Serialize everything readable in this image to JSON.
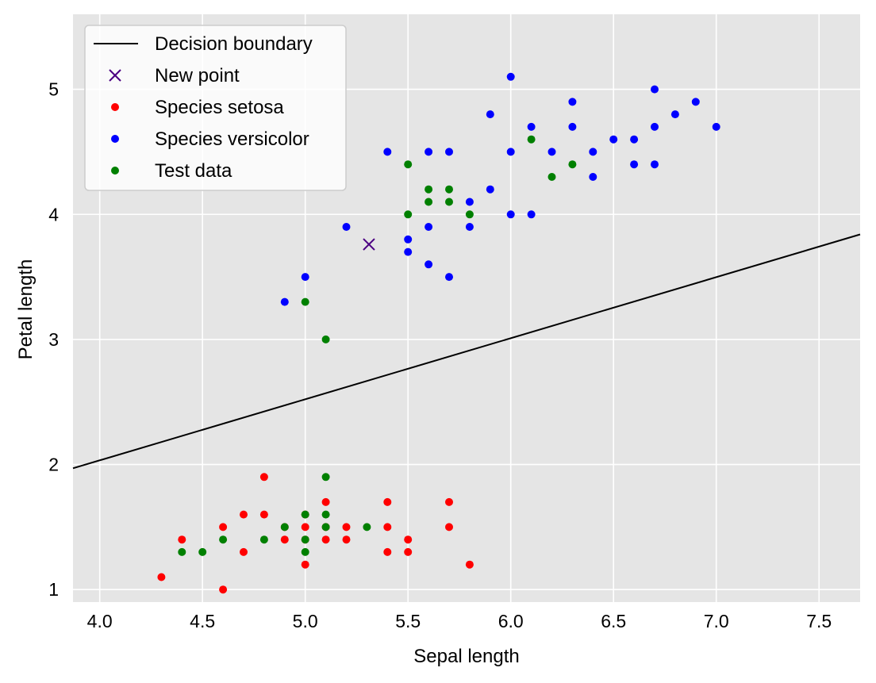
{
  "chart_data": {
    "type": "scatter",
    "title": "",
    "xlabel": "Sepal length",
    "ylabel": "Petal length",
    "xlim": [
      3.87,
      7.7
    ],
    "ylim": [
      0.9,
      5.6
    ],
    "xticks": [
      "4.0",
      "4.5",
      "5.0",
      "5.5",
      "6.0",
      "6.5",
      "7.0",
      "7.5"
    ],
    "yticks": [
      "1",
      "2",
      "3",
      "4",
      "5"
    ],
    "grid": true,
    "background": "#e5e5e5",
    "legend_position": "top-left",
    "series": [
      {
        "name": "Decision boundary",
        "kind": "line",
        "color": "#000000",
        "points": [
          [
            3.87,
            1.97
          ],
          [
            7.7,
            3.84
          ]
        ]
      },
      {
        "name": "New point",
        "kind": "x-marker",
        "color": "#4b0082",
        "points": [
          [
            5.31,
            3.76
          ]
        ]
      },
      {
        "name": "Species setosa",
        "kind": "dot",
        "color": "#ff0000",
        "points": [
          [
            4.3,
            1.1
          ],
          [
            4.4,
            1.4
          ],
          [
            4.6,
            1.5
          ],
          [
            4.6,
            1.0
          ],
          [
            4.7,
            1.6
          ],
          [
            4.7,
            1.3
          ],
          [
            4.8,
            1.9
          ],
          [
            4.8,
            1.6
          ],
          [
            4.9,
            1.5
          ],
          [
            4.9,
            1.4
          ],
          [
            5.0,
            1.6
          ],
          [
            5.0,
            1.5
          ],
          [
            5.0,
            1.4
          ],
          [
            5.0,
            1.2
          ],
          [
            5.1,
            1.7
          ],
          [
            5.1,
            1.5
          ],
          [
            5.1,
            1.4
          ],
          [
            5.2,
            1.5
          ],
          [
            5.2,
            1.4
          ],
          [
            5.4,
            1.7
          ],
          [
            5.4,
            1.5
          ],
          [
            5.4,
            1.3
          ],
          [
            5.5,
            1.4
          ],
          [
            5.5,
            1.3
          ],
          [
            5.7,
            1.7
          ],
          [
            5.7,
            1.5
          ],
          [
            5.8,
            1.2
          ]
        ]
      },
      {
        "name": "Species versicolor",
        "kind": "dot",
        "color": "#0000ff",
        "points": [
          [
            4.9,
            3.3
          ],
          [
            5.0,
            3.5
          ],
          [
            5.2,
            3.9
          ],
          [
            5.4,
            4.5
          ],
          [
            5.5,
            3.8
          ],
          [
            5.5,
            3.7
          ],
          [
            5.6,
            4.5
          ],
          [
            5.6,
            3.9
          ],
          [
            5.6,
            3.6
          ],
          [
            5.7,
            4.5
          ],
          [
            5.7,
            3.5
          ],
          [
            5.8,
            4.1
          ],
          [
            5.8,
            3.9
          ],
          [
            5.9,
            4.8
          ],
          [
            5.9,
            4.2
          ],
          [
            6.0,
            5.1
          ],
          [
            6.0,
            4.5
          ],
          [
            6.0,
            4.0
          ],
          [
            6.1,
            4.7
          ],
          [
            6.1,
            4.0
          ],
          [
            6.2,
            4.5
          ],
          [
            6.3,
            4.9
          ],
          [
            6.3,
            4.7
          ],
          [
            6.4,
            4.5
          ],
          [
            6.4,
            4.3
          ],
          [
            6.5,
            4.6
          ],
          [
            6.6,
            4.6
          ],
          [
            6.6,
            4.4
          ],
          [
            6.7,
            5.0
          ],
          [
            6.7,
            4.7
          ],
          [
            6.7,
            4.4
          ],
          [
            6.8,
            4.8
          ],
          [
            6.9,
            4.9
          ],
          [
            7.0,
            4.7
          ]
        ]
      },
      {
        "name": "Test data",
        "kind": "dot",
        "color": "#008000",
        "points": [
          [
            4.4,
            1.3
          ],
          [
            4.5,
            1.3
          ],
          [
            4.6,
            1.4
          ],
          [
            4.8,
            1.4
          ],
          [
            4.9,
            1.5
          ],
          [
            5.0,
            1.6
          ],
          [
            5.0,
            1.4
          ],
          [
            5.0,
            1.3
          ],
          [
            5.1,
            1.9
          ],
          [
            5.1,
            1.6
          ],
          [
            5.1,
            1.5
          ],
          [
            5.3,
            1.5
          ],
          [
            5.0,
            3.3
          ],
          [
            5.1,
            3.0
          ],
          [
            5.5,
            4.4
          ],
          [
            5.5,
            4.0
          ],
          [
            5.6,
            4.2
          ],
          [
            5.6,
            4.1
          ],
          [
            5.7,
            4.2
          ],
          [
            5.7,
            4.1
          ],
          [
            5.8,
            4.0
          ],
          [
            6.1,
            4.6
          ],
          [
            6.2,
            4.3
          ],
          [
            6.3,
            4.4
          ]
        ]
      }
    ]
  }
}
